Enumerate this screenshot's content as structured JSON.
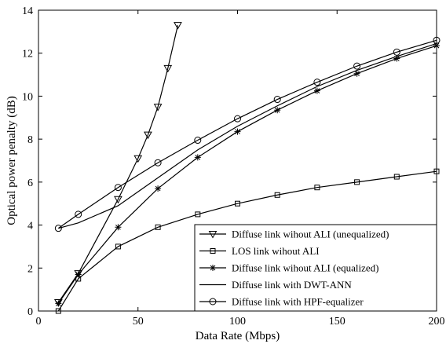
{
  "chart_data": {
    "type": "line",
    "title": "",
    "xlabel": "Data Rate (Mbps)",
    "ylabel": "Optical power penalty (dB)",
    "xlim": [
      0,
      200
    ],
    "ylim": [
      0,
      14
    ],
    "xticks": [
      0,
      50,
      100,
      150,
      200
    ],
    "yticks": [
      0,
      2,
      4,
      6,
      8,
      10,
      12,
      14
    ],
    "grid": false,
    "legend_position": "bottom-right",
    "series": [
      {
        "name": "Diffuse link wihout ALI (unequalized)",
        "marker": "triangle-down",
        "x": [
          10,
          20,
          40,
          50,
          55,
          60,
          65,
          70
        ],
        "y": [
          0.4,
          1.75,
          5.2,
          7.1,
          8.2,
          9.5,
          11.3,
          13.3
        ]
      },
      {
        "name": "LOS link wihout ALI",
        "marker": "square",
        "x": [
          10,
          20,
          40,
          60,
          80,
          100,
          120,
          140,
          160,
          180,
          200
        ],
        "y": [
          0.0,
          1.5,
          3.0,
          3.9,
          4.5,
          5.0,
          5.4,
          5.75,
          6.0,
          6.25,
          6.5
        ]
      },
      {
        "name": "Diffuse link wihout ALI (equalized)",
        "marker": "star",
        "x": [
          10,
          20,
          40,
          60,
          80,
          100,
          120,
          140,
          160,
          180,
          200
        ],
        "y": [
          0.35,
          1.7,
          3.9,
          5.7,
          7.15,
          8.35,
          9.35,
          10.25,
          11.05,
          11.75,
          12.35
        ]
      },
      {
        "name": "Diffuse link with DWT-ANN",
        "marker": "none",
        "x": [
          10,
          20,
          40,
          60,
          80,
          100,
          120,
          140,
          160,
          180,
          200
        ],
        "y": [
          3.85,
          4.1,
          4.9,
          6.2,
          7.5,
          8.6,
          9.55,
          10.45,
          11.2,
          11.85,
          12.45
        ]
      },
      {
        "name": "Diffuse link with HPF-equalizer",
        "marker": "circle",
        "x": [
          10,
          20,
          40,
          60,
          80,
          100,
          120,
          140,
          160,
          180,
          200
        ],
        "y": [
          3.85,
          4.5,
          5.75,
          6.9,
          7.95,
          8.95,
          9.85,
          10.65,
          11.4,
          12.05,
          12.6
        ]
      }
    ]
  }
}
